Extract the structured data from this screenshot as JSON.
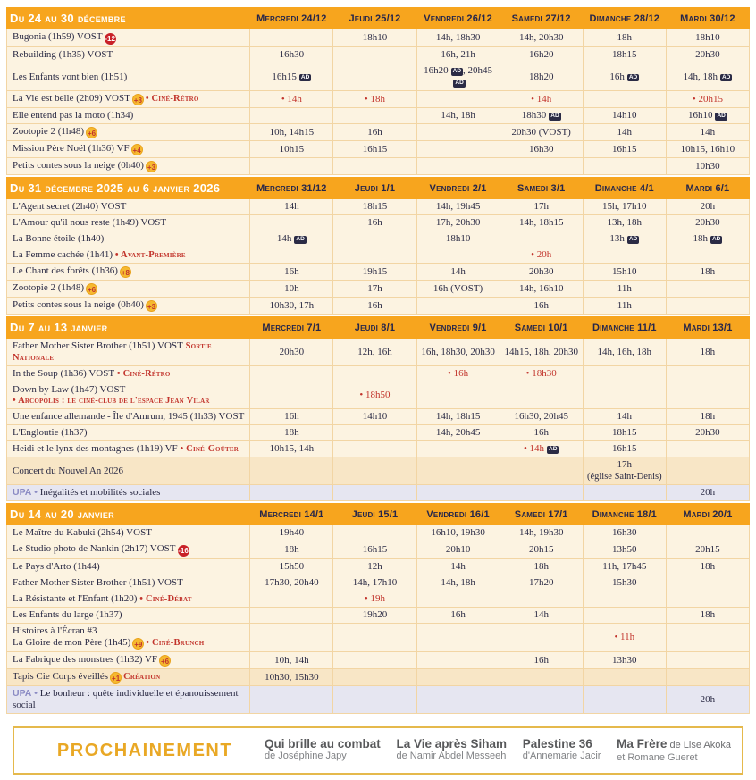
{
  "colors": {
    "header_orange": "#F7A51E",
    "row_cream": "#FCF3E1",
    "row_highlight": "#F8E6C6",
    "row_upa_lavender": "#E6E6F1",
    "cell_border": "#F2D5A4",
    "text_navy": "#2B2B45",
    "accent_red": "#C2342C",
    "badge_yellow": "#F6B930",
    "badge_red": "#C92128",
    "ad_icon_navy": "#2B2B45",
    "footer_gold": "#E9A825",
    "footer_gray": "#58595B"
  },
  "sections": [
    {
      "title": "Du 24 au 30 décembre",
      "days": [
        "Mercredi 24/12",
        "Jeudi 25/12",
        "Vendredi 26/12",
        "Samedi 27/12",
        "Dimanche 28/12",
        "Mardi 30/12"
      ],
      "rows": [
        {
          "title": "Bugonia (1h59) VOST",
          "badge": {
            "kind": "red",
            "label": "-12"
          },
          "cells": [
            "",
            "18h10",
            "14h, 18h30",
            "14h, 20h30",
            "18h",
            "18h10"
          ]
        },
        {
          "title": "Rebuilding (1h35) VOST",
          "cells": [
            "16h30",
            "",
            "16h, 21h",
            "16h20",
            "18h15",
            "20h30"
          ]
        },
        {
          "title": "Les Enfants vont bien (1h51)",
          "cells": [
            {
              "parts": [
                {
                  "t": "16h15",
                  "ad": true
                }
              ]
            },
            "",
            {
              "parts": [
                {
                  "t": "16h20",
                  "ad": true
                },
                {
                  "t": "20h45",
                  "ad": true
                }
              ]
            },
            "18h20",
            {
              "parts": [
                {
                  "t": "16h",
                  "ad": true
                }
              ]
            },
            {
              "parts": [
                {
                  "t": "14h"
                },
                {
                  "t": "18h",
                  "ad": true
                }
              ]
            }
          ]
        },
        {
          "title": "La Vie est belle (2h09) VOST",
          "badge": {
            "kind": "yellow",
            "label": "+8"
          },
          "tag": "• Ciné-Rétro",
          "cells": [
            {
              "red": true,
              "t": "• 14h"
            },
            {
              "red": true,
              "t": "• 18h"
            },
            "",
            {
              "red": true,
              "t": "• 14h"
            },
            "",
            {
              "red": true,
              "t": "• 20h15"
            }
          ]
        },
        {
          "title": "Elle entend pas la moto (1h34)",
          "cells": [
            "",
            "",
            "14h, 18h",
            {
              "parts": [
                {
                  "t": "18h30",
                  "ad": true
                }
              ]
            },
            "14h10",
            {
              "parts": [
                {
                  "t": "16h10",
                  "ad": true
                }
              ]
            }
          ]
        },
        {
          "title": "Zootopie 2 (1h48)",
          "badge": {
            "kind": "yellow",
            "label": "+6"
          },
          "cells": [
            "10h, 14h15",
            "16h",
            "",
            "20h30 (VOST)",
            "14h",
            "14h"
          ]
        },
        {
          "title": "Mission Père Noël (1h36) VF",
          "badge": {
            "kind": "yellow",
            "label": "+4"
          },
          "cells": [
            "10h15",
            "16h15",
            "",
            "16h30",
            "16h15",
            "10h15, 16h10"
          ]
        },
        {
          "title": "Petits contes sous la neige (0h40)",
          "badge": {
            "kind": "yellow",
            "label": "+3"
          },
          "cells": [
            "",
            "",
            "",
            "",
            "",
            "10h30"
          ]
        }
      ]
    },
    {
      "title": "Du 31 décembre 2025 au 6 janvier 2026",
      "days": [
        "Mercredi 31/12",
        "Jeudi 1/1",
        "Vendredi 2/1",
        "Samedi 3/1",
        "Dimanche 4/1",
        "Mardi 6/1"
      ],
      "rows": [
        {
          "title": "L'Agent secret (2h40) VOST",
          "cells": [
            "14h",
            "18h15",
            "14h, 19h45",
            "17h",
            "15h, 17h10",
            "20h"
          ]
        },
        {
          "title": "L'Amour qu'il nous reste (1h49) VOST",
          "cells": [
            "",
            "16h",
            "17h, 20h30",
            "14h, 18h15",
            "13h, 18h",
            "20h30"
          ]
        },
        {
          "title": "La Bonne étoile (1h40)",
          "cells": [
            {
              "parts": [
                {
                  "t": "14h",
                  "ad": true
                }
              ]
            },
            "",
            "18h10",
            "",
            {
              "parts": [
                {
                  "t": "13h",
                  "ad": true
                }
              ]
            },
            {
              "parts": [
                {
                  "t": "18h",
                  "ad": true
                }
              ]
            }
          ]
        },
        {
          "title": "La Femme cachée (1h41)",
          "tag": "• Avant-Première",
          "cells": [
            "",
            "",
            "",
            {
              "red": true,
              "t": "• 20h"
            },
            "",
            ""
          ]
        },
        {
          "title": "Le Chant des forêts (1h36)",
          "badge": {
            "kind": "yellow",
            "label": "+8"
          },
          "cells": [
            "16h",
            "19h15",
            "14h",
            "20h30",
            "15h10",
            "18h"
          ]
        },
        {
          "title": "Zootopie 2 (1h48)",
          "badge": {
            "kind": "yellow",
            "label": "+6"
          },
          "cells": [
            "10h",
            "17h",
            "16h (VOST)",
            "14h, 16h10",
            "11h",
            ""
          ]
        },
        {
          "title": "Petits contes sous la neige (0h40)",
          "badge": {
            "kind": "yellow",
            "label": "+3"
          },
          "cells": [
            "10h30, 17h",
            "16h",
            "",
            "16h",
            "11h",
            ""
          ]
        }
      ]
    },
    {
      "title": "Du 7 au 13 janvier",
      "days": [
        "Mercredi 7/1",
        "Jeudi 8/1",
        "Vendredi 9/1",
        "Samedi 10/1",
        "Dimanche 11/1",
        "Mardi 13/1"
      ],
      "rows": [
        {
          "title": "Father Mother Sister Brother (1h51) VOST",
          "tag": "Sortie Nationale",
          "cells": [
            "20h30",
            "12h, 16h",
            "16h, 18h30, 20h30",
            "14h15, 18h, 20h30",
            "14h, 16h, 18h",
            "18h"
          ]
        },
        {
          "title": "In the Soup (1h36) VOST",
          "tag": "• Ciné-Rétro",
          "cells": [
            "",
            "",
            {
              "red": true,
              "t": "• 16h"
            },
            {
              "red": true,
              "t": "• 18h30"
            },
            "",
            ""
          ]
        },
        {
          "title": "Down by Law (1h47) VOST",
          "tag2": "• Arcopolis : le ciné-club de l'espace Jean Vilar",
          "cells": [
            "",
            {
              "red": true,
              "t": "• 18h50"
            },
            "",
            "",
            "",
            ""
          ]
        },
        {
          "title": "Une enfance allemande - Île d'Amrum, 1945 (1h33) VOST",
          "cells": [
            "16h",
            "14h10",
            "14h, 18h15",
            "16h30, 20h45",
            "14h",
            "18h"
          ]
        },
        {
          "title": "L'Engloutie (1h37)",
          "cells": [
            "18h",
            "",
            "14h, 20h45",
            "16h",
            "18h15",
            "20h30"
          ]
        },
        {
          "title": "Heidi et le lynx des montagnes (1h19) VF",
          "tag": "• Ciné-Goûter",
          "cells": [
            "10h15, 14h",
            "",
            "",
            {
              "red": true,
              "parts": [
                {
                  "t": "• 14h",
                  "ad": true
                }
              ]
            },
            "16h15",
            ""
          ]
        },
        {
          "title": "Concert du Nouvel An 2026",
          "variant": "highlight",
          "cells": [
            "",
            "",
            "",
            "",
            {
              "t": "17h",
              "sub": "(église Saint-Denis)"
            },
            ""
          ]
        },
        {
          "upa": "UPA",
          "title": "Inégalités et mobilités sociales",
          "variant": "upa",
          "cells": [
            "",
            "",
            "",
            "",
            "",
            "20h"
          ]
        }
      ]
    },
    {
      "title": "Du 14 au 20 janvier",
      "days": [
        "Mercredi 14/1",
        "Jeudi 15/1",
        "Vendredi 16/1",
        "Samedi 17/1",
        "Dimanche 18/1",
        "Mardi 20/1"
      ],
      "rows": [
        {
          "title": "Le Maître du Kabuki (2h54) VOST",
          "cells": [
            "19h40",
            "",
            "16h10, 19h30",
            "14h, 19h30",
            "16h30",
            ""
          ]
        },
        {
          "title": "Le Studio photo de Nankin (2h17) VOST",
          "badge": {
            "kind": "red",
            "label": "-16"
          },
          "cells": [
            "18h",
            "16h15",
            "20h10",
            "20h15",
            "13h50",
            "20h15"
          ]
        },
        {
          "title": "Le Pays d'Arto (1h44)",
          "cells": [
            "15h50",
            "12h",
            "14h",
            "18h",
            "11h, 17h45",
            "18h"
          ]
        },
        {
          "title": "Father Mother Sister Brother (1h51) VOST",
          "cells": [
            "17h30, 20h40",
            "14h, 17h10",
            "14h, 18h",
            "17h20",
            "15h30",
            ""
          ]
        },
        {
          "title": "La Résistante et l'Enfant (1h20)",
          "tag": "• Ciné-Débat",
          "cells": [
            "",
            {
              "red": true,
              "t": "• 19h"
            },
            "",
            "",
            "",
            ""
          ]
        },
        {
          "title": "Les Enfants du large (1h37)",
          "cells": [
            "",
            "19h20",
            "16h",
            "14h",
            "",
            "18h"
          ]
        },
        {
          "pretitle": "Histoires à l'Écran #3",
          "title": "La Gloire de mon Père (1h45)",
          "badge": {
            "kind": "yellow",
            "label": "+9"
          },
          "tag": "• Ciné-Brunch",
          "cells": [
            "",
            "",
            "",
            "",
            {
              "red": true,
              "t": "• 11h"
            },
            ""
          ]
        },
        {
          "title": "La Fabrique des monstres (1h32) VF",
          "badge": {
            "kind": "yellow",
            "label": "+6"
          },
          "cells": [
            "10h, 14h",
            "",
            "",
            "16h",
            "13h30",
            ""
          ]
        },
        {
          "title": "Tapis Cie Corps éveillés",
          "badge": {
            "kind": "yellow",
            "label": "+1"
          },
          "tag": "Création",
          "variant": "highlight",
          "cells": [
            "10h30, 15h30",
            "",
            "",
            "",
            "",
            ""
          ]
        },
        {
          "upa": "UPA",
          "title": "Le bonheur : quête individuelle et épanouissement social",
          "variant": "upa",
          "cells": [
            "",
            "",
            "",
            "",
            "",
            "20h"
          ]
        }
      ]
    }
  ],
  "footer": {
    "title": "PROCHAINEMENT",
    "films": [
      {
        "title": "Qui brille au combat",
        "title_suffix": "",
        "credit": "de Joséphine Japy"
      },
      {
        "title": "La Vie après Siham",
        "title_suffix": "",
        "credit": "de Namir Abdel Messeeh"
      },
      {
        "title": "Palestine 36",
        "title_suffix": "",
        "credit": "d'Annemarie Jacir"
      },
      {
        "title": "Ma Frère",
        "title_suffix": "de Lise Akoka",
        "credit": "et Romane Gueret"
      }
    ]
  }
}
